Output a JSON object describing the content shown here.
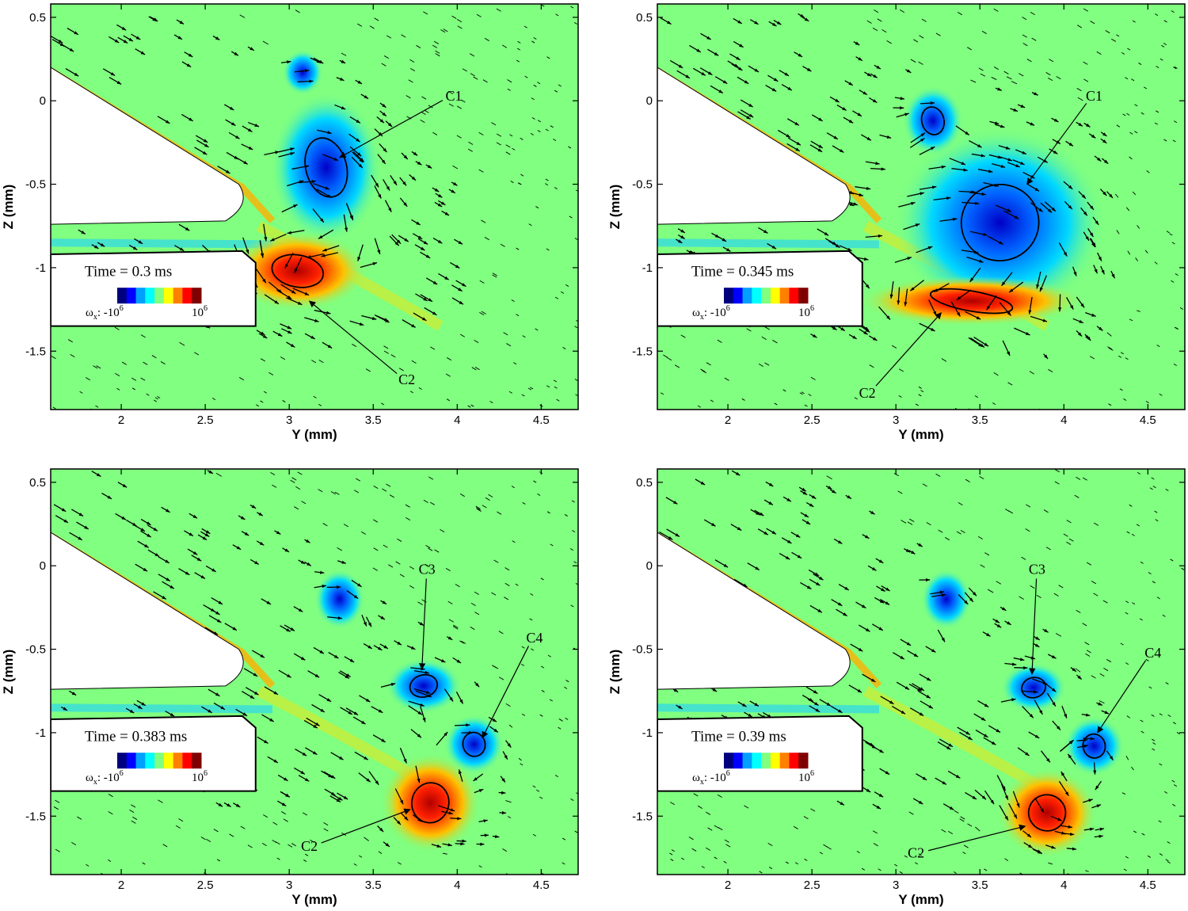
{
  "figure": {
    "xlabel": "Y (mm)",
    "ylabel": "Z (mm)",
    "colorbar": {
      "symbol": "ω",
      "subscript": "x",
      "min_base": "-10",
      "max_base": "10",
      "exponent": "6",
      "colors": [
        "#00007f",
        "#0000ff",
        "#00a0ff",
        "#00ffff",
        "#80ff80",
        "#ffff00",
        "#ff8000",
        "#ff0000",
        "#7f0000"
      ]
    },
    "background_color": "#80ff80"
  },
  "chart_data": [
    {
      "type": "contour-vector",
      "time_label": "Time = 0.3 ms",
      "xlim": [
        1.58,
        4.72
      ],
      "ylim": [
        -1.85,
        0.58
      ],
      "xticks": [
        "2",
        "2.5",
        "3",
        "3.5",
        "4",
        "4.5"
      ],
      "yticks": [
        "0.5",
        "0",
        "-0.5",
        "-1",
        "-1.5"
      ],
      "annotations": [
        {
          "label": "C1",
          "text_at": [
            3.98,
            0.03
          ],
          "points_to": [
            3.3,
            -0.34
          ]
        },
        {
          "label": "C2",
          "text_at": [
            3.7,
            -1.67
          ],
          "points_to": [
            3.12,
            -1.2
          ]
        }
      ],
      "vortices": [
        {
          "y": 3.22,
          "z": -0.4,
          "sign": -1,
          "ry": 0.22,
          "rz": 0.3
        },
        {
          "y": 3.05,
          "z": -1.02,
          "sign": 1,
          "ry": 0.28,
          "rz": 0.16
        },
        {
          "y": 3.08,
          "z": 0.17,
          "sign": -1,
          "ry": 0.08,
          "rz": 0.09
        }
      ]
    },
    {
      "type": "contour-vector",
      "time_label": "Time = 0.345 ms",
      "xlim": [
        1.58,
        4.72
      ],
      "ylim": [
        -1.85,
        0.58
      ],
      "xticks": [
        "2",
        "2.5",
        "3",
        "3.5",
        "4",
        "4.5"
      ],
      "yticks": [
        "0.5",
        "0",
        "-0.5",
        "-1",
        "-1.5"
      ],
      "annotations": [
        {
          "label": "C1",
          "text_at": [
            4.18,
            0.03
          ],
          "points_to": [
            3.78,
            -0.5
          ]
        },
        {
          "label": "C2",
          "text_at": [
            2.83,
            -1.75
          ],
          "points_to": [
            3.27,
            -1.27
          ]
        }
      ],
      "vortices": [
        {
          "y": 3.62,
          "z": -0.73,
          "sign": -1,
          "ry": 0.42,
          "rz": 0.38
        },
        {
          "y": 3.45,
          "z": -1.2,
          "sign": 1,
          "ry": 0.45,
          "rz": 0.1
        },
        {
          "y": 3.22,
          "z": -0.12,
          "sign": -1,
          "ry": 0.12,
          "rz": 0.14
        }
      ]
    },
    {
      "type": "contour-vector",
      "time_label": "Time = 0.383 ms",
      "xlim": [
        1.58,
        4.72
      ],
      "ylim": [
        -1.85,
        0.58
      ],
      "xticks": [
        "2",
        "2.5",
        "3",
        "3.5",
        "4",
        "4.5"
      ],
      "yticks": [
        "0.5",
        "0",
        "-0.5",
        "-1",
        "-1.5"
      ],
      "annotations": [
        {
          "label": "C3",
          "text_at": [
            3.82,
            -0.02
          ],
          "points_to": [
            3.79,
            -0.62
          ]
        },
        {
          "label": "C4",
          "text_at": [
            4.46,
            -0.43
          ],
          "points_to": [
            4.15,
            -1.03
          ]
        },
        {
          "label": "C2",
          "text_at": [
            3.12,
            -1.68
          ],
          "points_to": [
            3.72,
            -1.46
          ]
        }
      ],
      "vortices": [
        {
          "y": 3.8,
          "z": -0.72,
          "sign": -1,
          "ry": 0.15,
          "rz": 0.11
        },
        {
          "y": 4.1,
          "z": -1.07,
          "sign": -1,
          "ry": 0.12,
          "rz": 0.12
        },
        {
          "y": 3.84,
          "z": -1.42,
          "sign": 1,
          "ry": 0.2,
          "rz": 0.2
        },
        {
          "y": 3.3,
          "z": -0.2,
          "sign": -1,
          "ry": 0.1,
          "rz": 0.12
        }
      ]
    },
    {
      "type": "contour-vector",
      "time_label": "Time = 0.39 ms",
      "xlim": [
        1.58,
        4.72
      ],
      "ylim": [
        -1.85,
        0.58
      ],
      "xticks": [
        "2",
        "2.5",
        "3",
        "3.5",
        "4",
        "4.5"
      ],
      "yticks": [
        "0.5",
        "0",
        "-0.5",
        "-1",
        "-1.5"
      ],
      "annotations": [
        {
          "label": "C3",
          "text_at": [
            3.84,
            -0.02
          ],
          "points_to": [
            3.81,
            -0.65
          ]
        },
        {
          "label": "C4",
          "text_at": [
            4.53,
            -0.52
          ],
          "points_to": [
            4.2,
            -1.0
          ]
        },
        {
          "label": "C2",
          "text_at": [
            3.12,
            -1.72
          ],
          "points_to": [
            3.77,
            -1.56
          ]
        }
      ],
      "vortices": [
        {
          "y": 3.82,
          "z": -0.73,
          "sign": -1,
          "ry": 0.13,
          "rz": 0.1
        },
        {
          "y": 4.18,
          "z": -1.08,
          "sign": -1,
          "ry": 0.12,
          "rz": 0.12
        },
        {
          "y": 3.9,
          "z": -1.48,
          "sign": 1,
          "ry": 0.2,
          "rz": 0.18
        },
        {
          "y": 3.3,
          "z": -0.2,
          "sign": -1,
          "ry": 0.1,
          "rz": 0.12
        }
      ]
    }
  ]
}
